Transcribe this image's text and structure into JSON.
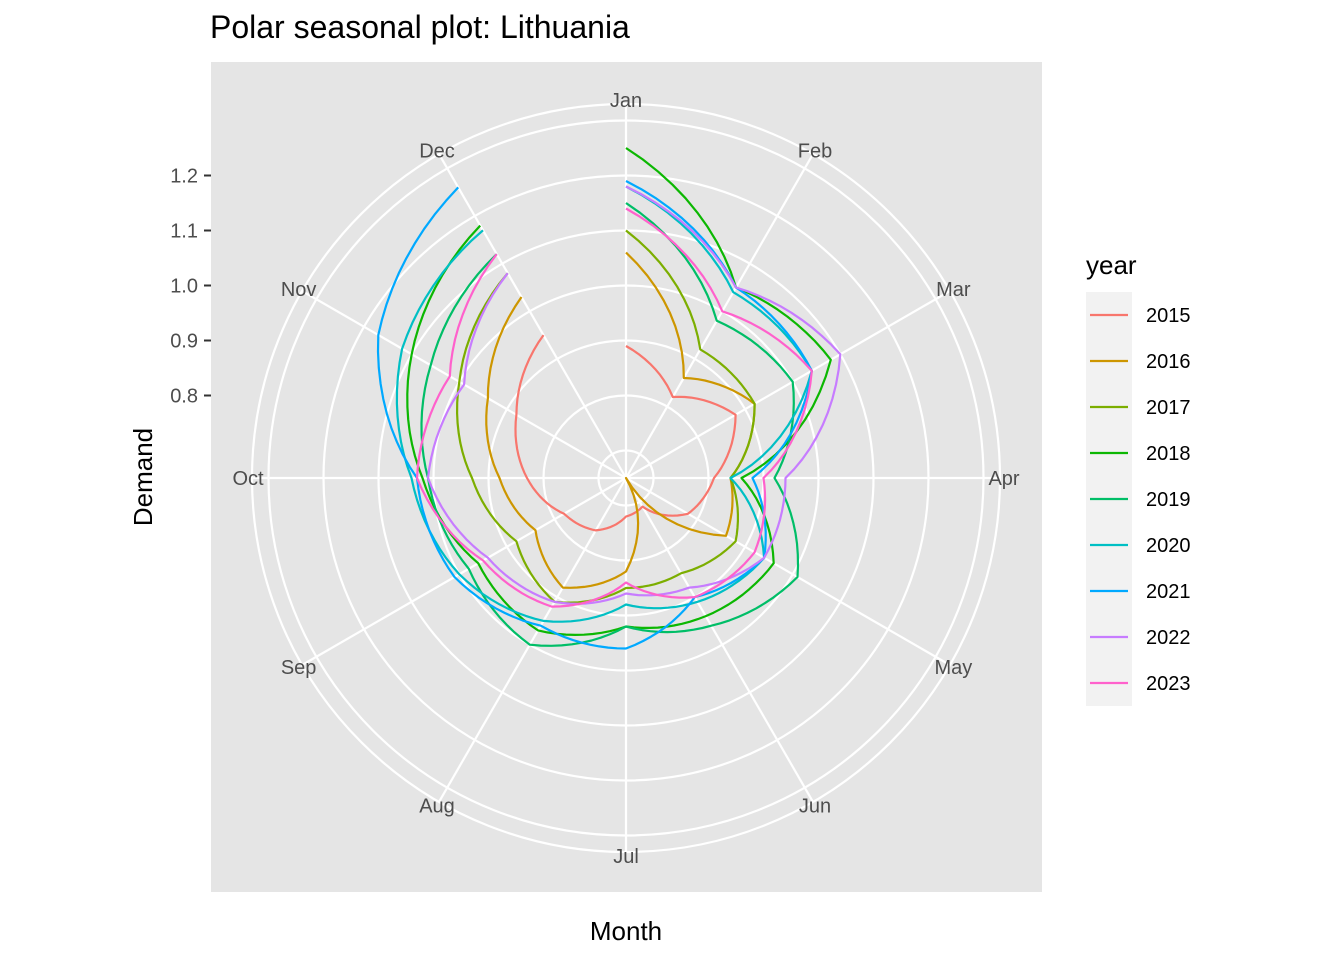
{
  "chart_data": {
    "type": "line",
    "coordinate_system": "polar",
    "title": "Polar seasonal plot: Lithuania",
    "xlabel": "Month",
    "ylabel": "Demand",
    "categories": [
      "Jan",
      "Feb",
      "Mar",
      "Apr",
      "May",
      "Jun",
      "Jul",
      "Aug",
      "Sep",
      "Oct",
      "Nov",
      "Dec"
    ],
    "y_ticks": [
      "0.8",
      "0.9",
      "1.0",
      "1.1",
      "1.2"
    ],
    "ylim": [
      0.65,
      1.33
    ],
    "grid": true,
    "legend": {
      "title": "year",
      "position": "right"
    },
    "background": "#e5e5e5",
    "series": [
      {
        "name": "2015",
        "color": "#F8766D",
        "values": [
          0.89,
          0.82,
          0.88,
          0.81,
          0.78,
          0.71,
          0.72,
          0.76,
          0.78,
          0.83,
          0.88,
          0.95
        ]
      },
      {
        "name": "2016",
        "color": "#CD9600",
        "values": [
          1.06,
          0.86,
          0.92,
          0.84,
          0.86,
          0.65,
          0.82,
          0.88,
          0.84,
          0.88,
          0.94,
          1.03
        ]
      },
      {
        "name": "2017",
        "color": "#7CAE00",
        "values": [
          1.1,
          0.92,
          0.92,
          0.84,
          0.88,
          0.85,
          0.85,
          0.91,
          0.88,
          0.93,
          1.0,
          1.08
        ]
      },
      {
        "name": "2018",
        "color": "#0CB702",
        "values": [
          1.25,
          1.05,
          1.08,
          0.86,
          0.96,
          0.94,
          0.92,
          0.97,
          0.96,
          1.02,
          1.1,
          1.18
        ]
      },
      {
        "name": "2019",
        "color": "#00BE67",
        "values": [
          1.15,
          0.98,
          1.0,
          0.92,
          1.01,
          0.96,
          0.92,
          1.0,
          0.98,
          1.01,
          1.06,
          1.12
        ]
      },
      {
        "name": "2020",
        "color": "#00BFC4",
        "values": [
          1.18,
          1.04,
          1.04,
          0.84,
          0.94,
          0.91,
          0.88,
          0.95,
          1.0,
          1.04,
          1.12,
          1.17
        ]
      },
      {
        "name": "2021",
        "color": "#00A9FF",
        "values": [
          1.19,
          1.05,
          1.04,
          0.88,
          0.94,
          0.9,
          0.96,
          0.96,
          1.01,
          1.03,
          1.17,
          1.26
        ]
      },
      {
        "name": "2022",
        "color": "#C77CFF",
        "values": [
          1.18,
          1.05,
          1.1,
          0.94,
          0.94,
          0.88,
          0.86,
          0.91,
          0.94,
          1.01,
          0.99,
          1.08
        ]
      },
      {
        "name": "2023",
        "color": "#FF61CC",
        "values": [
          1.14,
          1.0,
          1.04,
          0.9,
          0.92,
          0.9,
          0.84,
          0.92,
          0.95,
          1.03,
          1.02,
          1.12
        ]
      }
    ]
  }
}
